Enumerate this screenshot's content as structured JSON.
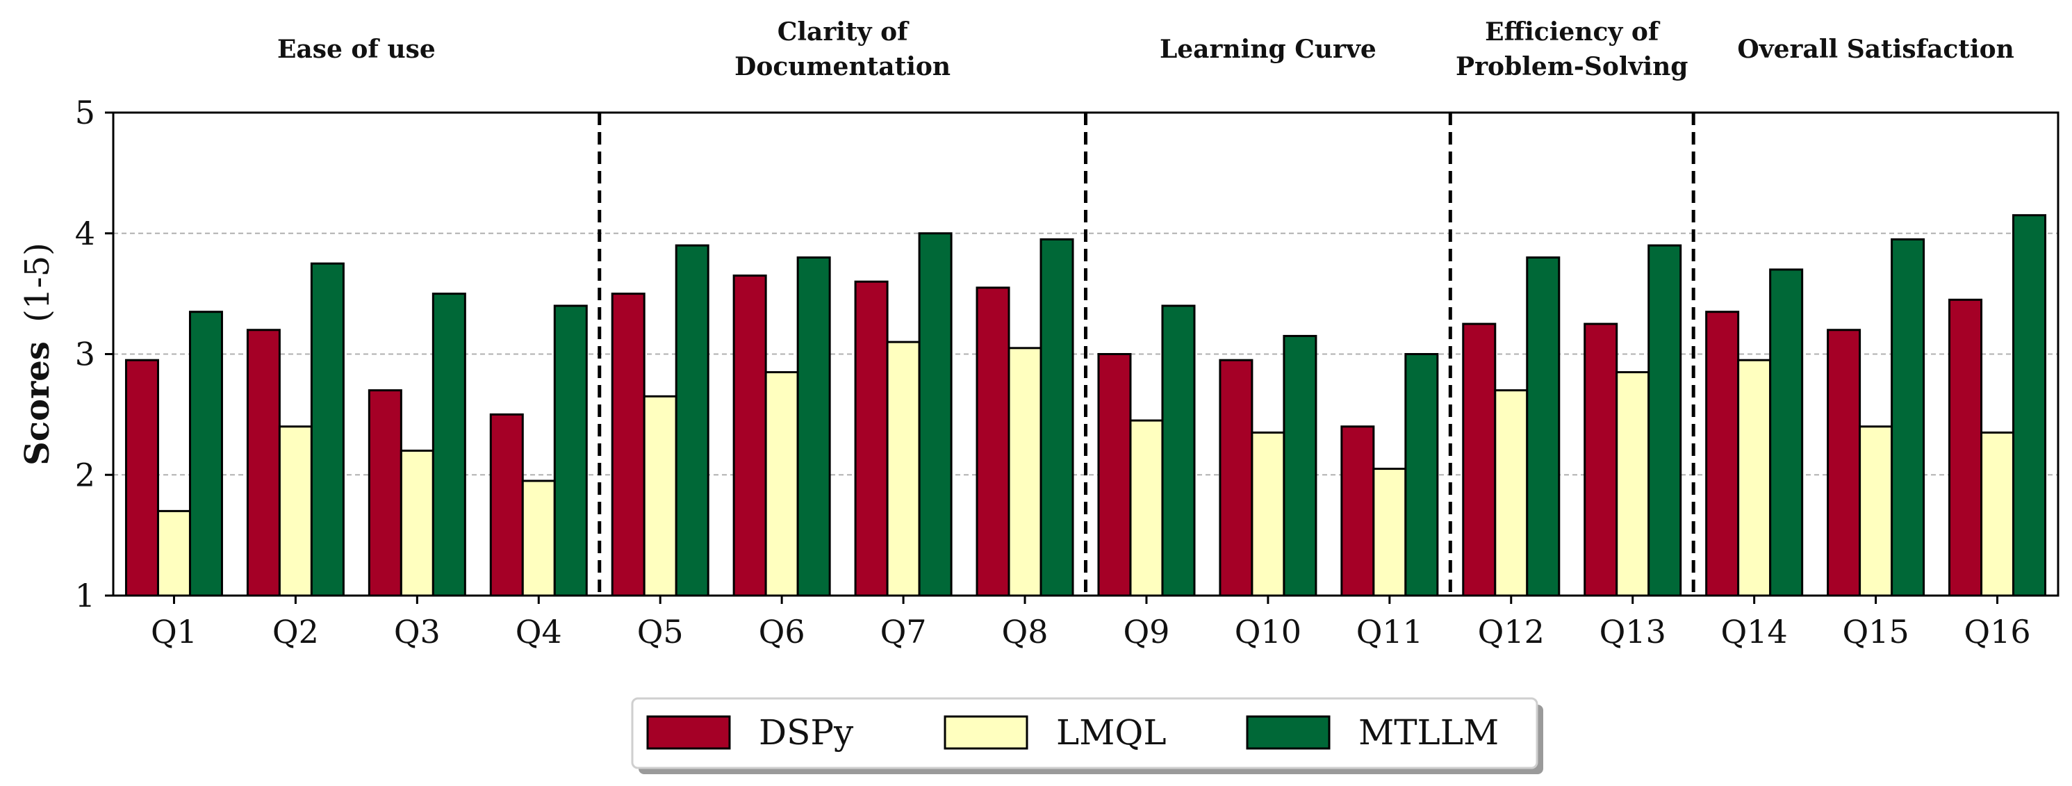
{
  "chart_data": {
    "type": "bar",
    "ylabel_bold": "Scores",
    "ylabel_rest": "(1-5)",
    "ylim": [
      1,
      5
    ],
    "yticks": [
      1,
      2,
      3,
      4,
      5
    ],
    "grid": "horizontal dashed",
    "legend_position": "bottom-center",
    "categories": [
      "Q1",
      "Q2",
      "Q3",
      "Q4",
      "Q5",
      "Q6",
      "Q7",
      "Q8",
      "Q9",
      "Q10",
      "Q11",
      "Q12",
      "Q13",
      "Q14",
      "Q15",
      "Q16"
    ],
    "series": [
      {
        "name": "DSPy",
        "color": "#a50026",
        "values": [
          2.95,
          3.2,
          2.7,
          2.5,
          3.5,
          3.65,
          3.6,
          3.55,
          3.0,
          2.95,
          2.4,
          3.25,
          3.25,
          3.35,
          3.2,
          3.45
        ]
      },
      {
        "name": "LMQL",
        "color": "#ffffbf",
        "values": [
          1.7,
          2.4,
          2.2,
          1.95,
          2.65,
          2.85,
          3.1,
          3.05,
          2.45,
          2.35,
          2.05,
          2.7,
          2.85,
          2.95,
          2.4,
          2.35
        ]
      },
      {
        "name": "MTLLM",
        "color": "#006837",
        "values": [
          3.35,
          3.75,
          3.5,
          3.4,
          3.9,
          3.8,
          4.0,
          3.95,
          3.4,
          3.15,
          3.0,
          3.8,
          3.9,
          3.7,
          3.95,
          4.15
        ]
      }
    ],
    "groups": [
      {
        "lines": [
          "Ease of use"
        ],
        "categories": [
          "Q1",
          "Q2",
          "Q3",
          "Q4"
        ]
      },
      {
        "lines": [
          "Clarity of",
          "Documentation"
        ],
        "categories": [
          "Q5",
          "Q6",
          "Q7",
          "Q8"
        ]
      },
      {
        "lines": [
          "Learning Curve"
        ],
        "categories": [
          "Q9",
          "Q10",
          "Q11"
        ]
      },
      {
        "lines": [
          "Efficiency of",
          "Problem-Solving"
        ],
        "categories": [
          "Q12",
          "Q13"
        ]
      },
      {
        "lines": [
          "Overall Satisfaction"
        ],
        "categories": [
          "Q14",
          "Q15",
          "Q16"
        ]
      }
    ]
  }
}
